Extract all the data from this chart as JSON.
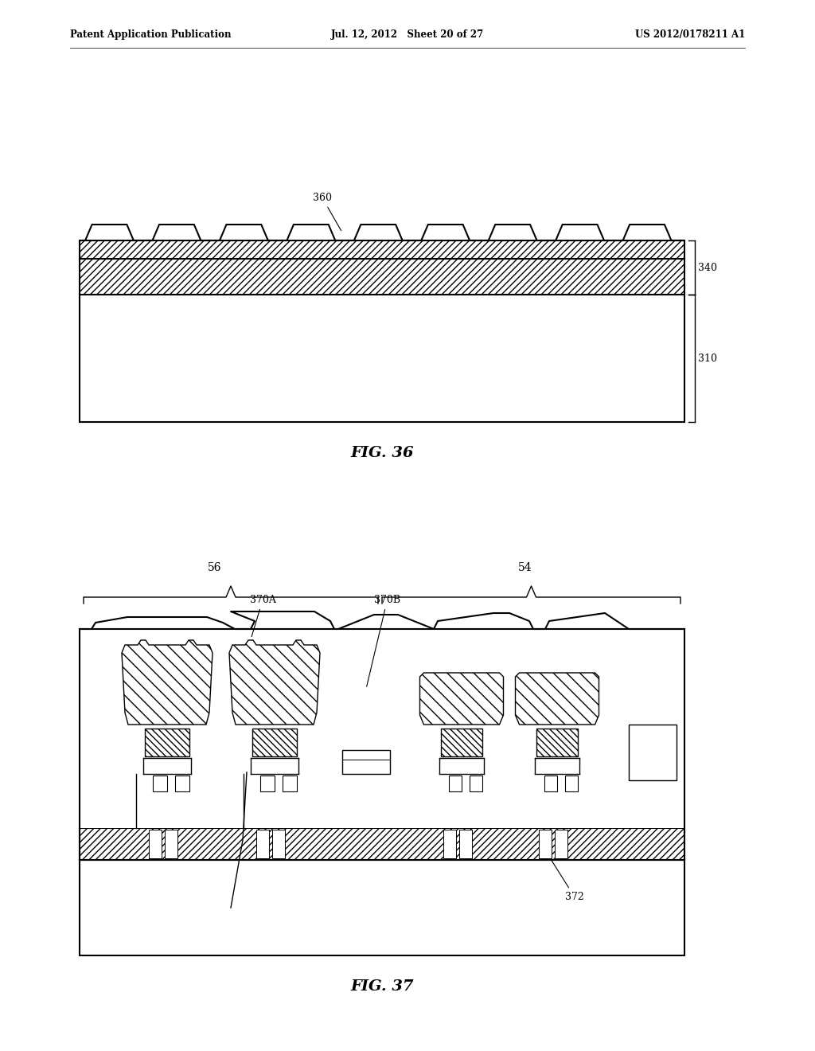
{
  "header_left": "Patent Application Publication",
  "header_center": "Jul. 12, 2012   Sheet 20 of 27",
  "header_right": "US 2012/0178211 A1",
  "fig36_label": "FIG. 36",
  "fig37_label": "FIG. 37",
  "bg_color": "#ffffff",
  "line_color": "#000000"
}
